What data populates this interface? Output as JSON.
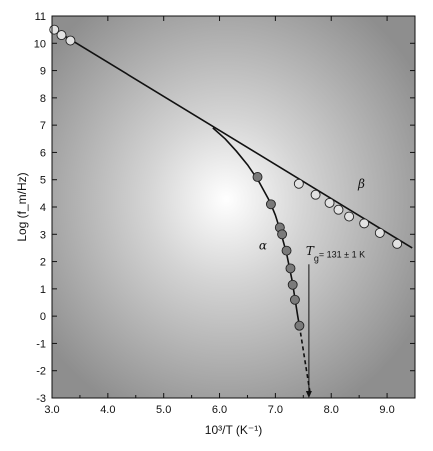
{
  "chart_data": {
    "type": "scatter",
    "xlabel": "10³/T (K⁻¹)",
    "ylabel": "Log (f_m/Hz)",
    "xlim": [
      3.0,
      9.5
    ],
    "ylim": [
      -3,
      11
    ],
    "x_ticks": [
      "3.0",
      "4.0",
      "5.0",
      "6.0",
      "7.0",
      "8.0",
      "9.0"
    ],
    "y_ticks": [
      "-3",
      "-2",
      "-1",
      "0",
      "1",
      "2",
      "3",
      "4",
      "5",
      "6",
      "7",
      "8",
      "9",
      "10",
      "11"
    ],
    "background": "radial-gray",
    "grid": false,
    "series": [
      {
        "name": "α",
        "marker_color": "#7a7a7a",
        "points": [
          {
            "x": 6.68,
            "y": 5.1
          },
          {
            "x": 6.92,
            "y": 4.1
          },
          {
            "x": 7.08,
            "y": 3.25
          },
          {
            "x": 7.12,
            "y": 3.0
          },
          {
            "x": 7.2,
            "y": 2.4
          },
          {
            "x": 7.27,
            "y": 1.75
          },
          {
            "x": 7.31,
            "y": 1.15
          },
          {
            "x": 7.35,
            "y": 0.6
          },
          {
            "x": 7.43,
            "y": -0.35
          }
        ]
      },
      {
        "name": "β",
        "marker_color": "#e2e2e2",
        "points": [
          {
            "x": 3.04,
            "y": 10.5
          },
          {
            "x": 3.17,
            "y": 10.3
          },
          {
            "x": 3.33,
            "y": 10.1
          },
          {
            "x": 7.42,
            "y": 4.85
          },
          {
            "x": 7.72,
            "y": 4.45
          },
          {
            "x": 7.97,
            "y": 4.15
          },
          {
            "x": 8.13,
            "y": 3.9
          },
          {
            "x": 8.32,
            "y": 3.65
          },
          {
            "x": 8.59,
            "y": 3.4
          },
          {
            "x": 8.87,
            "y": 3.05
          },
          {
            "x": 9.18,
            "y": 2.65
          }
        ]
      }
    ],
    "fit_curves": [
      {
        "name": "β-fit",
        "x": [
          3.0,
          9.45
        ],
        "y": [
          10.55,
          2.5
        ]
      },
      {
        "name": "α-fit",
        "x": [
          5.88,
          6.1,
          6.3,
          6.5,
          6.7,
          6.9,
          7.0,
          7.1,
          7.2,
          7.3,
          7.4,
          7.43
        ],
        "y": [
          6.9,
          6.5,
          6.05,
          5.55,
          4.95,
          4.2,
          3.7,
          3.05,
          2.3,
          1.3,
          0.0,
          -0.35
        ]
      },
      {
        "name": "α-extrapolation",
        "x": [
          7.43,
          7.62
        ],
        "y": [
          -0.35,
          -2.8
        ],
        "dashed": true
      }
    ],
    "annotations": {
      "alpha": "α",
      "beta": "β",
      "tg_symbol": "T",
      "tg_subscript": "g",
      "tg_value": " = 131 ± 1 K",
      "tg_arrow_x": 7.6,
      "tg_arrow_from_y": 1.9,
      "tg_arrow_to_y": -3.0
    }
  }
}
